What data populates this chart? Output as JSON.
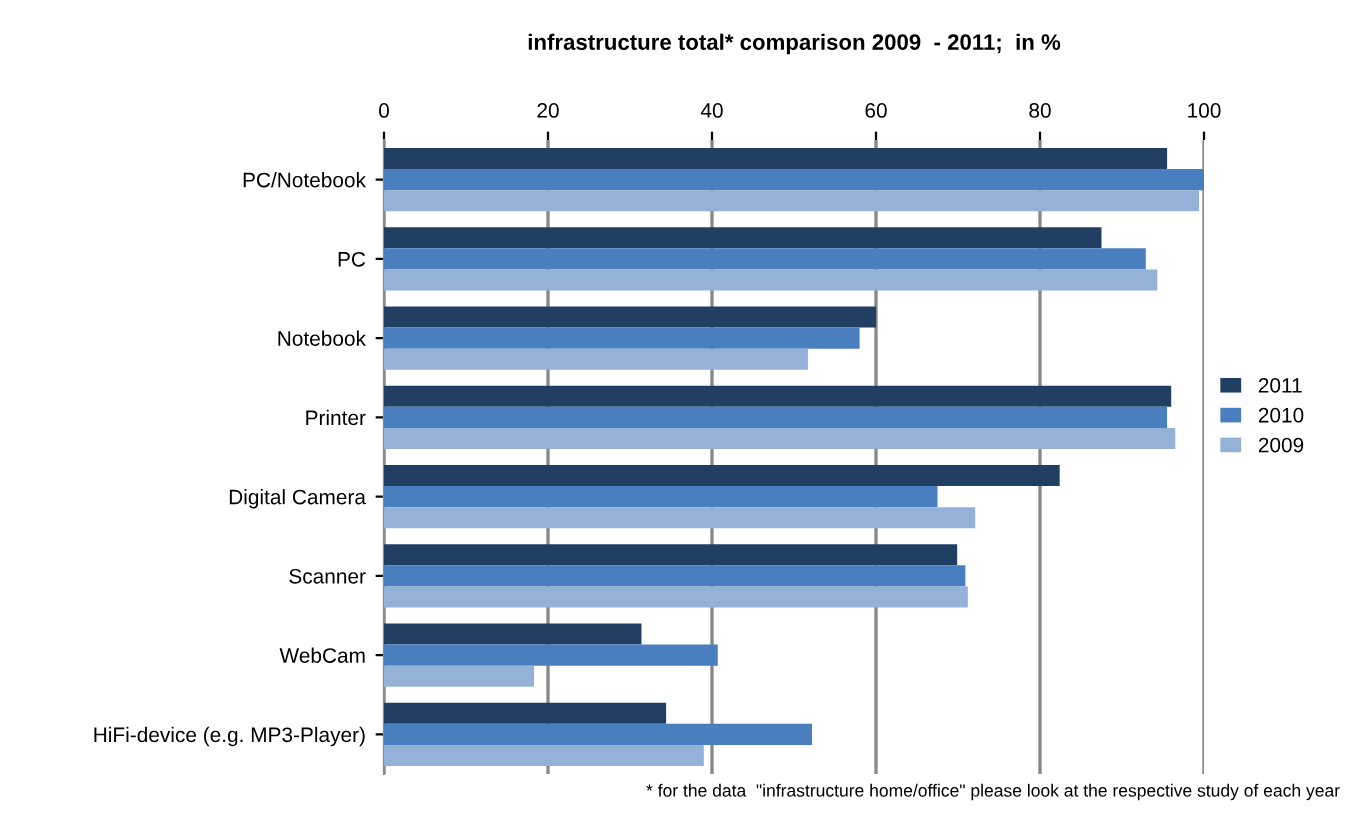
{
  "chart_data": {
    "type": "bar",
    "orientation": "horizontal",
    "title": "infrastructure total* comparison 2009  - 2011;  in %",
    "categories": [
      "PC/Notebook",
      "PC",
      "Notebook",
      "Printer",
      "Digital Camera",
      "Scanner",
      "WebCam",
      "HiFi-device (e.g. MP3-Player)"
    ],
    "series": [
      {
        "name": "2011",
        "color": "#203f62",
        "values": [
          95.5,
          87.5,
          60,
          96,
          82.4,
          69.9,
          31.4,
          34.4
        ]
      },
      {
        "name": "2010",
        "color": "#4a7fbf",
        "values": [
          100,
          92.9,
          58,
          95.5,
          67.5,
          70.9,
          40.7,
          52.2
        ]
      },
      {
        "name": "2009",
        "color": "#94b2d8",
        "values": [
          99.4,
          94.3,
          51.7,
          96.5,
          72.1,
          71.2,
          18.3,
          39
        ]
      }
    ],
    "xlim": [
      0,
      100
    ],
    "xticks": [
      0,
      20,
      40,
      60,
      80,
      100
    ],
    "grid": "x",
    "legend": "right",
    "annotations": [
      "* for the data  \"infrastructure home/office\" please look at the respective study of each year"
    ]
  }
}
